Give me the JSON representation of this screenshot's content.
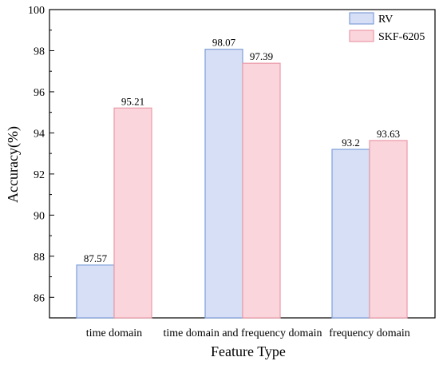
{
  "chart_data": {
    "type": "bar",
    "title": "",
    "xlabel": "Feature Type",
    "ylabel": "Accuracy(%)",
    "ylim": [
      85,
      100
    ],
    "yticks": [
      86,
      88,
      90,
      92,
      94,
      96,
      98,
      100
    ],
    "categories": [
      "time domain",
      "time domain and frequency domain",
      "frequency domain"
    ],
    "series": [
      {
        "name": "RV",
        "values": [
          87.57,
          98.07,
          93.2
        ],
        "labels": [
          "87.57",
          "98.07",
          "93.2"
        ],
        "fill": "#d6dff5",
        "stroke": "#7f9fd8"
      },
      {
        "name": "SKF-6205",
        "values": [
          95.21,
          97.39,
          93.63
        ],
        "labels": [
          "95.21",
          "97.39",
          "93.63"
        ],
        "fill": "#fbd5dc",
        "stroke": "#eb9aa8"
      }
    ],
    "legend": {
      "position": "top-right"
    },
    "grid": false
  }
}
